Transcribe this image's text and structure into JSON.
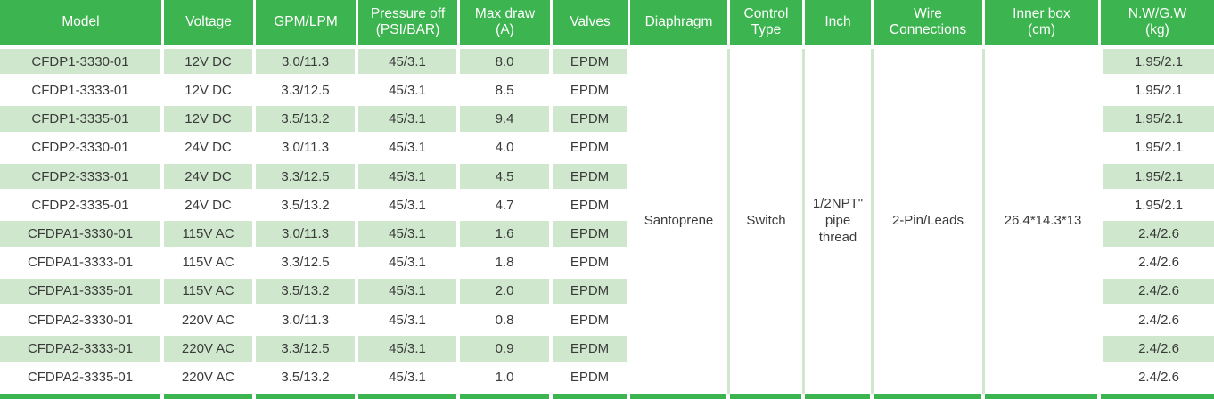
{
  "colors": {
    "header_green": "#3cb44f",
    "stripe_green": "#cfe8cd",
    "body_text": "#3a3a3a",
    "header_text": "#ffffff"
  },
  "table": {
    "columns": [
      "Model",
      "Voltage",
      "GPM/LPM",
      "Pressure off\n(PSI/BAR)",
      "Max draw\n(A)",
      "Valves",
      "Diaphragm",
      "Control\nType",
      "Inch",
      "Wire\nConnections",
      "Inner box\n(cm)",
      "N.W/G.W\n(kg)"
    ],
    "rows": [
      [
        "CFDP1-3330-01",
        "12V DC",
        "3.0/11.3",
        "45/3.1",
        "8.0",
        "EPDM",
        "1.95/2.1"
      ],
      [
        "CFDP1-3333-01",
        "12V DC",
        "3.3/12.5",
        "45/3.1",
        "8.5",
        "EPDM",
        "1.95/2.1"
      ],
      [
        "CFDP1-3335-01",
        "12V DC",
        "3.5/13.2",
        "45/3.1",
        "9.4",
        "EPDM",
        "1.95/2.1"
      ],
      [
        "CFDP2-3330-01",
        "24V DC",
        "3.0/11.3",
        "45/3.1",
        "4.0",
        "EPDM",
        "1.95/2.1"
      ],
      [
        "CFDP2-3333-01",
        "24V DC",
        "3.3/12.5",
        "45/3.1",
        "4.5",
        "EPDM",
        "1.95/2.1"
      ],
      [
        "CFDP2-3335-01",
        "24V DC",
        "3.5/13.2",
        "45/3.1",
        "4.7",
        "EPDM",
        "1.95/2.1"
      ],
      [
        "CFDPA1-3330-01",
        "115V AC",
        "3.0/11.3",
        "45/3.1",
        "1.6",
        "EPDM",
        "2.4/2.6"
      ],
      [
        "CFDPA1-3333-01",
        "115V AC",
        "3.3/12.5",
        "45/3.1",
        "1.8",
        "EPDM",
        "2.4/2.6"
      ],
      [
        "CFDPA1-3335-01",
        "115V AC",
        "3.5/13.2",
        "45/3.1",
        "2.0",
        "EPDM",
        "2.4/2.6"
      ],
      [
        "CFDPA2-3330-01",
        "220V AC",
        "3.0/11.3",
        "45/3.1",
        "0.8",
        "EPDM",
        "2.4/2.6"
      ],
      [
        "CFDPA2-3333-01",
        "220V AC",
        "3.3/12.5",
        "45/3.1",
        "0.9",
        "EPDM",
        "2.4/2.6"
      ],
      [
        "CFDPA2-3335-01",
        "220V AC",
        "3.5/13.2",
        "45/3.1",
        "1.0",
        "EPDM",
        "2.4/2.6"
      ]
    ],
    "merged": {
      "diaphragm": "Santoprene",
      "control_type": "Switch",
      "inch": "1/2NPT\"\npipe\nthread",
      "wire_connections": "2-Pin/Leads",
      "inner_box": "26.4*14.3*13"
    }
  }
}
